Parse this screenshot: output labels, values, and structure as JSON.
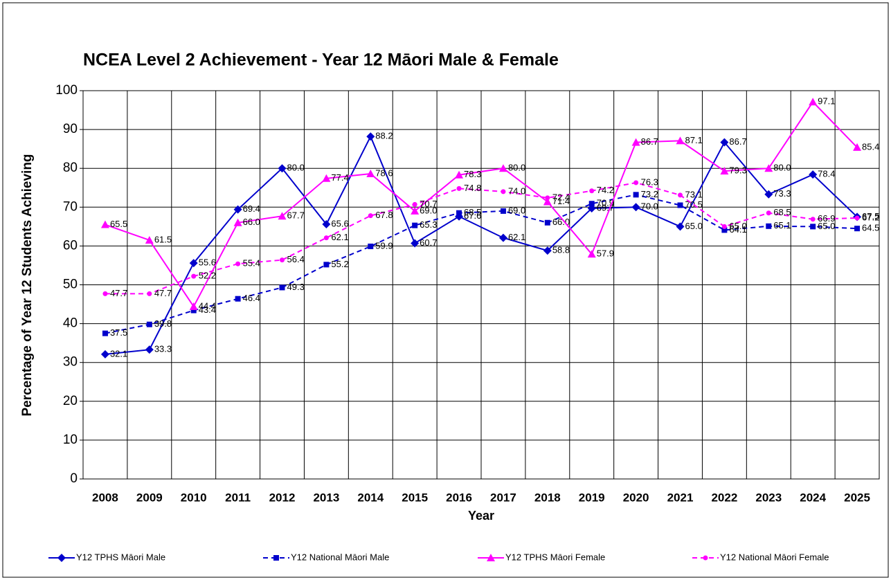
{
  "chart_data": {
    "type": "line",
    "title": "NCEA Level 2 Achievement - Year 12 Māori Male & Female",
    "x_label": "Year",
    "y_label": "Percentage of Year 12 Students Achieving",
    "categories": [
      "2008",
      "2009",
      "2010",
      "2011",
      "2012",
      "2013",
      "2014",
      "2015",
      "2016",
      "2017",
      "2018",
      "2019",
      "2020",
      "2021",
      "2022",
      "2023",
      "2024",
      "2025"
    ],
    "ylim": [
      0,
      100
    ],
    "yticks": [
      0,
      10,
      20,
      30,
      40,
      50,
      60,
      70,
      80,
      90,
      100
    ],
    "grid": true,
    "legend": "bottom",
    "series": [
      {
        "name": "Y12 TPHS Māori Male",
        "color": "#0000cc",
        "line_style": "solid",
        "marker": "diamond",
        "values": [
          32.1,
          33.3,
          55.6,
          69.4,
          80,
          65.6,
          88.2,
          60.7,
          67.6,
          62.1,
          58.8,
          69.7,
          70,
          65,
          86.7,
          73.3,
          78.4,
          67.5
        ],
        "value_labels": [
          "32.1",
          "33.3",
          "55.6",
          "69.4",
          "80.0",
          "65.6",
          "88.2",
          "60.7",
          "67.6",
          "62.1",
          "58.8",
          "69.7",
          "70.0",
          "65.0",
          "86.7",
          "73.3",
          "78.4",
          "67.5"
        ]
      },
      {
        "name": "Y12 National Māori Male",
        "color": "#0000cc",
        "line_style": "dashed",
        "marker": "square",
        "values": [
          37.5,
          39.8,
          43.4,
          46.4,
          49.3,
          55.2,
          59.9,
          65.3,
          68.5,
          69,
          66,
          70.9,
          73.2,
          70.5,
          64.1,
          65.1,
          65,
          64.5
        ],
        "value_labels": [
          "37.5",
          "39.8",
          "43.4",
          "46.4",
          "49.3",
          "55.2",
          "59.9",
          "65.3",
          "68.5",
          "69.0",
          "66.0",
          "70.9",
          "73.2",
          "70.5",
          "64.1",
          "65.1",
          "65.0",
          "64.5"
        ]
      },
      {
        "name": "Y12 TPHS Māori Female",
        "color": "#ff00ff",
        "line_style": "solid",
        "marker": "triangle",
        "values": [
          65.5,
          61.5,
          44.4,
          66,
          67.7,
          77.4,
          78.6,
          69,
          78.3,
          80,
          71.4,
          57.9,
          86.7,
          87.1,
          79.3,
          80,
          97.1,
          85.4
        ],
        "value_labels": [
          "65.5",
          "61.5",
          "44.4",
          "66.0",
          "67.7",
          "77.4",
          "78.6",
          "69.0",
          "78.3",
          "80.0",
          "71.4",
          "57.9",
          "86.7",
          "87.1",
          "79.3",
          "80.0",
          "97.1",
          "85.4"
        ]
      },
      {
        "name": "Y12 National Māori Female",
        "color": "#ff00ff",
        "line_style": "dashed",
        "marker": "circle",
        "values": [
          47.7,
          47.7,
          52.2,
          55.4,
          56.4,
          62.1,
          67.8,
          70.7,
          74.8,
          74,
          72.4,
          74.2,
          76.3,
          73.1,
          65,
          68.5,
          66.9,
          67.2
        ],
        "value_labels": [
          "47.7",
          "47.7",
          "52.2",
          "55.4",
          "56.4",
          "62.1",
          "67.8",
          "70.7",
          "74.8",
          "74.0",
          "72.4",
          "74.2",
          "76.3",
          "73.1",
          "65.0",
          "68.5",
          "66.9",
          "67.2"
        ]
      }
    ]
  }
}
